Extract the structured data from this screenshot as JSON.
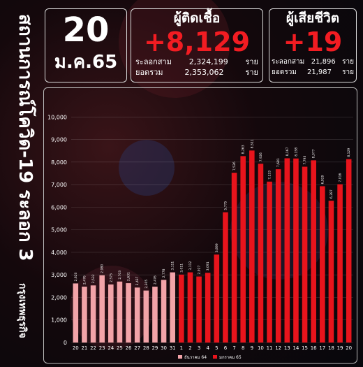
{
  "side_title": "สถานการณ์โควิด-19 ระลอก 3",
  "brand": "กรุงเทพธุรกิจ",
  "unit": "ราย",
  "date": {
    "day": "20",
    "month": "ม.ค.65"
  },
  "infected": {
    "title": "ผู้ติดเชื้อ",
    "new": "+8,129",
    "wave_label": "ระลอกสาม",
    "wave_value": "2,324,199",
    "total_label": "ยอดรวม",
    "total_value": "2,353,062"
  },
  "deaths": {
    "title": "ผู้เสียชีวิต",
    "new": "+19",
    "wave_label": "ระลอกสาม",
    "wave_value": "21,896",
    "total_label": "ยอดรวม",
    "total_value": "21,987"
  },
  "chart_data": {
    "type": "bar",
    "categories": [
      "20",
      "21",
      "22",
      "23",
      "24",
      "25",
      "26",
      "27",
      "28",
      "29",
      "30",
      "31",
      "1",
      "2",
      "3",
      "4",
      "5",
      "6",
      "7",
      "8",
      "9",
      "10",
      "11",
      "12",
      "13",
      "14",
      "15",
      "16",
      "17",
      "18",
      "19",
      "20"
    ],
    "series": [
      {
        "name": "ธันวาคม 64",
        "color": "#f2a3a8",
        "values": [
          2620,
          2476,
          2532,
          2980,
          2575,
          2703,
          2631,
          2437,
          2305,
          2476,
          2778,
          3111,
          null,
          null,
          null,
          null,
          null,
          null,
          null,
          null,
          null,
          null,
          null,
          null,
          null,
          null,
          null,
          null,
          null,
          null,
          null,
          null
        ],
        "value_labels": [
          "2,620",
          "2,476",
          "2,532",
          "2,980",
          "2,575",
          "2,703",
          "2,631",
          "2,437",
          "2,305",
          "2,476",
          "2,778",
          "3,111",
          null,
          null,
          null,
          null,
          null,
          null,
          null,
          null,
          null,
          null,
          null,
          null,
          null,
          null,
          null,
          null,
          null,
          null,
          null,
          null
        ]
      },
      {
        "name": "มกราคม 65",
        "color": "#e8141c",
        "values": [
          null,
          null,
          null,
          null,
          null,
          null,
          null,
          null,
          null,
          null,
          null,
          null,
          3011,
          3112,
          2927,
          3091,
          3899,
          5775,
          7526,
          8263,
          8511,
          7926,
          7133,
          7681,
          8167,
          8158,
          7793,
          8077,
          6929,
          6287,
          7016,
          8129
        ],
        "value_labels": [
          null,
          null,
          null,
          null,
          null,
          null,
          null,
          null,
          null,
          null,
          null,
          null,
          "3,011",
          "3,112",
          "2,927",
          "3,091",
          "3,899",
          "5,775",
          "7,526",
          "8,263",
          "8,511",
          "7,926",
          "7,133",
          "7,681",
          "8,167",
          "8,158",
          "7,793",
          "8,077",
          "6,929",
          "6,287",
          "7,016",
          "8,129"
        ]
      }
    ],
    "ylim": [
      0,
      11000
    ],
    "yticks": [
      0,
      {
        "value": 1000,
        "label": "1,000"
      },
      {
        "value": 2000,
        "label": "2,000"
      },
      {
        "value": 3000,
        "label": "3,000"
      },
      {
        "value": 4000,
        "label": "4,000"
      },
      {
        "value": 5000,
        "label": "5,000"
      },
      {
        "value": 6000,
        "label": "6,000"
      },
      {
        "value": 7000,
        "label": "7,000"
      },
      {
        "value": 8000,
        "label": "8,000"
      },
      {
        "value": 9000,
        "label": "9,000"
      },
      {
        "value": 10000,
        "label": "10,000"
      }
    ],
    "grid": true
  }
}
